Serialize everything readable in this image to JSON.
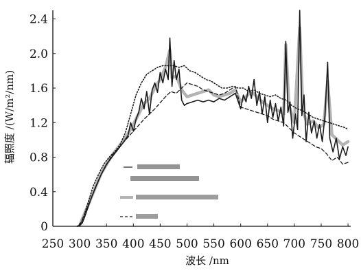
{
  "chart_data": {
    "type": "line",
    "title": "",
    "xlabel": "波长 /nm",
    "ylabel": "辐照度 /(W/m²/nm)",
    "xlim": [
      250,
      805
    ],
    "ylim": [
      0,
      2.5
    ],
    "x_ticks": [
      "250",
      "300",
      "350",
      "400",
      "450",
      "500",
      "550",
      "600",
      "650",
      "700",
      "750",
      "800"
    ],
    "y_ticks": [
      "0",
      "0.4",
      "0.8",
      "1.2",
      "1.6",
      "2.0",
      "2.4"
    ],
    "grid": false,
    "legend_position": "lower-left inside",
    "legend_color": "#2b2b2b",
    "series": [
      {
        "style": "solid-dark",
        "color": "#1a1a1a",
        "points": [
          [
            295,
            0.0
          ],
          [
            300,
            0.01
          ],
          [
            305,
            0.04
          ],
          [
            310,
            0.12
          ],
          [
            320,
            0.3
          ],
          [
            330,
            0.46
          ],
          [
            340,
            0.6
          ],
          [
            350,
            0.72
          ],
          [
            360,
            0.8
          ],
          [
            370,
            0.88
          ],
          [
            380,
            0.96
          ],
          [
            390,
            1.05
          ],
          [
            395,
            1.2
          ],
          [
            400,
            1.1
          ],
          [
            405,
            1.24
          ],
          [
            410,
            1.32
          ],
          [
            415,
            1.48
          ],
          [
            420,
            1.36
          ],
          [
            425,
            1.56
          ],
          [
            430,
            1.3
          ],
          [
            435,
            1.58
          ],
          [
            440,
            1.66
          ],
          [
            445,
            1.55
          ],
          [
            450,
            1.78
          ],
          [
            455,
            1.66
          ],
          [
            460,
            1.82
          ],
          [
            465,
            1.7
          ],
          [
            468,
            2.18
          ],
          [
            472,
            1.62
          ],
          [
            476,
            1.92
          ],
          [
            480,
            1.7
          ],
          [
            485,
            1.82
          ],
          [
            490,
            1.46
          ],
          [
            495,
            1.4
          ],
          [
            500,
            1.42
          ],
          [
            510,
            1.44
          ],
          [
            520,
            1.46
          ],
          [
            530,
            1.44
          ],
          [
            540,
            1.46
          ],
          [
            550,
            1.44
          ],
          [
            560,
            1.48
          ],
          [
            570,
            1.46
          ],
          [
            580,
            1.5
          ],
          [
            590,
            1.54
          ],
          [
            600,
            1.36
          ],
          [
            605,
            1.52
          ],
          [
            610,
            1.44
          ],
          [
            615,
            1.62
          ],
          [
            620,
            1.48
          ],
          [
            625,
            1.7
          ],
          [
            630,
            1.4
          ],
          [
            635,
            1.56
          ],
          [
            640,
            1.3
          ],
          [
            645,
            1.5
          ],
          [
            650,
            1.2
          ],
          [
            655,
            1.46
          ],
          [
            660,
            1.26
          ],
          [
            665,
            1.42
          ],
          [
            670,
            1.22
          ],
          [
            675,
            1.38
          ],
          [
            680,
            1.16
          ],
          [
            684,
            2.14
          ],
          [
            688,
            1.32
          ],
          [
            692,
            1.44
          ],
          [
            697,
            1.02
          ],
          [
            702,
            1.3
          ],
          [
            706,
            1.12
          ],
          [
            710,
            2.5
          ],
          [
            714,
            1.28
          ],
          [
            718,
            1.52
          ],
          [
            722,
            0.98
          ],
          [
            727,
            1.32
          ],
          [
            732,
            1.08
          ],
          [
            737,
            1.22
          ],
          [
            742,
            1.02
          ],
          [
            747,
            1.18
          ],
          [
            752,
            0.98
          ],
          [
            757,
            1.28
          ],
          [
            762,
            1.9
          ],
          [
            766,
            1.02
          ],
          [
            772,
            0.86
          ],
          [
            778,
            1.02
          ],
          [
            784,
            0.78
          ],
          [
            790,
            0.92
          ],
          [
            796,
            0.82
          ],
          [
            800,
            0.92
          ]
        ]
      },
      {
        "style": "solid-light",
        "color": "#b4b4b4",
        "points": [
          [
            300,
            0.01
          ],
          [
            320,
            0.31
          ],
          [
            340,
            0.61
          ],
          [
            360,
            0.82
          ],
          [
            380,
            0.98
          ],
          [
            390,
            1.07
          ],
          [
            400,
            1.18
          ],
          [
            410,
            1.3
          ],
          [
            420,
            1.42
          ],
          [
            430,
            1.48
          ],
          [
            440,
            1.6
          ],
          [
            450,
            1.7
          ],
          [
            460,
            1.84
          ],
          [
            468,
            2.04
          ],
          [
            472,
            1.72
          ],
          [
            480,
            1.74
          ],
          [
            490,
            1.58
          ],
          [
            500,
            1.5
          ],
          [
            510,
            1.52
          ],
          [
            520,
            1.54
          ],
          [
            530,
            1.56
          ],
          [
            540,
            1.58
          ],
          [
            550,
            1.52
          ],
          [
            560,
            1.5
          ],
          [
            570,
            1.52
          ],
          [
            580,
            1.54
          ],
          [
            590,
            1.58
          ],
          [
            600,
            1.44
          ],
          [
            610,
            1.5
          ],
          [
            620,
            1.56
          ],
          [
            630,
            1.5
          ],
          [
            640,
            1.44
          ],
          [
            650,
            1.4
          ],
          [
            660,
            1.36
          ],
          [
            670,
            1.34
          ],
          [
            680,
            1.3
          ],
          [
            684,
            2.1
          ],
          [
            690,
            1.4
          ],
          [
            700,
            1.2
          ],
          [
            710,
            2.3
          ],
          [
            716,
            1.34
          ],
          [
            724,
            1.18
          ],
          [
            735,
            1.22
          ],
          [
            745,
            1.14
          ],
          [
            755,
            1.18
          ],
          [
            762,
            1.68
          ],
          [
            770,
            1.06
          ],
          [
            780,
            1.0
          ],
          [
            790,
            0.94
          ],
          [
            800,
            0.98
          ]
        ]
      },
      {
        "style": "dotted",
        "color": "#1a1a1a",
        "points": [
          [
            296,
            0.0
          ],
          [
            305,
            0.06
          ],
          [
            315,
            0.26
          ],
          [
            325,
            0.46
          ],
          [
            335,
            0.6
          ],
          [
            345,
            0.72
          ],
          [
            355,
            0.8
          ],
          [
            365,
            0.86
          ],
          [
            375,
            0.94
          ],
          [
            385,
            1.08
          ],
          [
            395,
            1.3
          ],
          [
            405,
            1.52
          ],
          [
            415,
            1.66
          ],
          [
            425,
            1.76
          ],
          [
            435,
            1.8
          ],
          [
            445,
            1.84
          ],
          [
            455,
            1.86
          ],
          [
            465,
            1.86
          ],
          [
            475,
            1.86
          ],
          [
            485,
            1.84
          ],
          [
            495,
            1.86
          ],
          [
            505,
            1.8
          ],
          [
            515,
            1.78
          ],
          [
            525,
            1.74
          ],
          [
            535,
            1.7
          ],
          [
            545,
            1.68
          ],
          [
            555,
            1.64
          ],
          [
            565,
            1.6
          ],
          [
            575,
            1.6
          ],
          [
            585,
            1.62
          ],
          [
            595,
            1.6
          ],
          [
            605,
            1.6
          ],
          [
            615,
            1.56
          ],
          [
            625,
            1.58
          ],
          [
            635,
            1.54
          ],
          [
            645,
            1.52
          ],
          [
            655,
            1.5
          ],
          [
            665,
            1.52
          ],
          [
            675,
            1.48
          ],
          [
            685,
            1.46
          ],
          [
            695,
            1.4
          ],
          [
            705,
            1.36
          ],
          [
            715,
            1.34
          ],
          [
            725,
            1.3
          ],
          [
            735,
            1.26
          ],
          [
            745,
            1.24
          ],
          [
            755,
            1.22
          ],
          [
            765,
            1.2
          ],
          [
            775,
            1.18
          ],
          [
            785,
            1.16
          ],
          [
            795,
            1.14
          ],
          [
            800,
            1.12
          ]
        ]
      },
      {
        "style": "dashed",
        "color": "#1a1a1a",
        "points": [
          [
            300,
            0.01
          ],
          [
            320,
            0.3
          ],
          [
            340,
            0.6
          ],
          [
            360,
            0.82
          ],
          [
            380,
            0.96
          ],
          [
            400,
            1.1
          ],
          [
            420,
            1.24
          ],
          [
            440,
            1.36
          ],
          [
            460,
            1.5
          ],
          [
            470,
            1.56
          ],
          [
            480,
            1.54
          ],
          [
            490,
            1.6
          ],
          [
            500,
            1.66
          ],
          [
            510,
            1.64
          ],
          [
            520,
            1.62
          ],
          [
            530,
            1.58
          ],
          [
            540,
            1.56
          ],
          [
            550,
            1.54
          ],
          [
            560,
            1.52
          ],
          [
            570,
            1.54
          ],
          [
            580,
            1.58
          ],
          [
            590,
            1.62
          ],
          [
            600,
            1.38
          ],
          [
            610,
            1.36
          ],
          [
            620,
            1.34
          ],
          [
            630,
            1.32
          ],
          [
            640,
            1.3
          ],
          [
            650,
            1.28
          ],
          [
            660,
            1.24
          ],
          [
            670,
            1.22
          ],
          [
            680,
            1.2
          ],
          [
            690,
            1.14
          ],
          [
            700,
            1.08
          ],
          [
            710,
            1.04
          ],
          [
            720,
            1.0
          ],
          [
            730,
            0.96
          ],
          [
            740,
            0.92
          ],
          [
            750,
            0.9
          ],
          [
            760,
            0.84
          ],
          [
            770,
            0.76
          ],
          [
            780,
            0.8
          ],
          [
            790,
            0.72
          ],
          [
            800,
            0.74
          ]
        ]
      }
    ]
  }
}
